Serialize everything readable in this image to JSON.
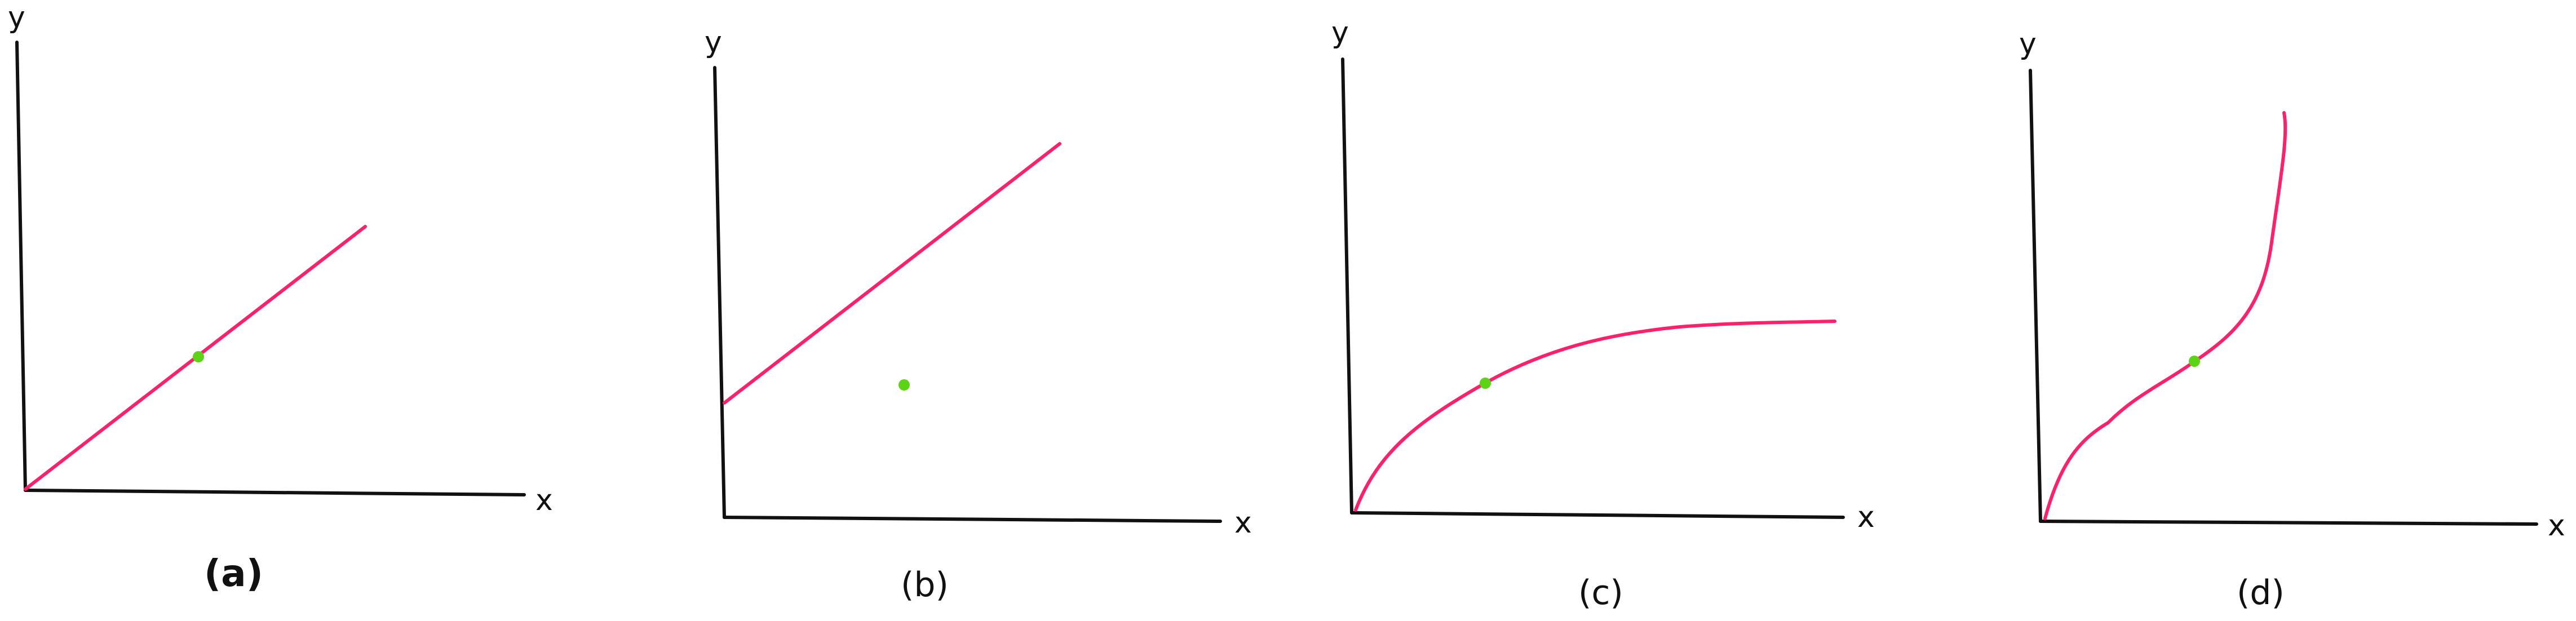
{
  "colors": {
    "axis": "#111111",
    "curve": "#ff1f6b",
    "point": "#5cd416",
    "background": "#ffffff"
  },
  "panels": [
    {
      "id": "a",
      "caption": "(a)",
      "y_label": "y",
      "x_label": "x",
      "curve_shape": "straight line through origin, point on line"
    },
    {
      "id": "b",
      "caption": "(b)",
      "y_label": "y",
      "x_label": "x",
      "curve_shape": "straight line with positive intercept, point below line"
    },
    {
      "id": "c",
      "caption": "(c)",
      "y_label": "y",
      "x_label": "x",
      "curve_shape": "concave saturating curve, point on curve"
    },
    {
      "id": "d",
      "caption": "(d)",
      "y_label": "y",
      "x_label": "x",
      "curve_shape": "curve rising steeply at right, point on curve"
    }
  ]
}
